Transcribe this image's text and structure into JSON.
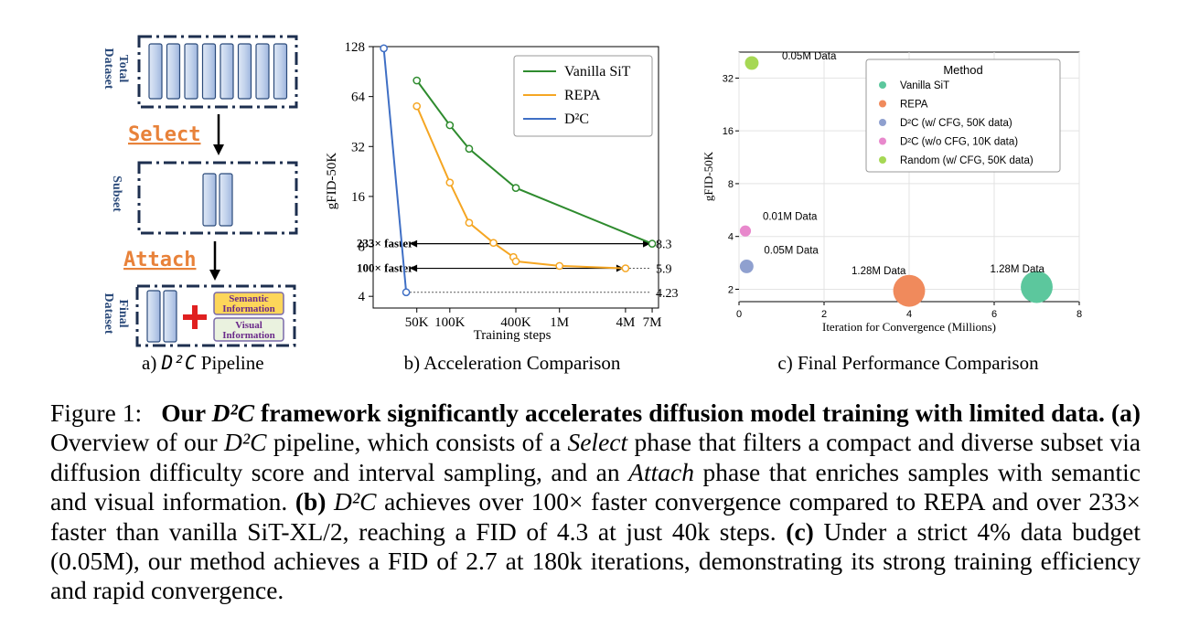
{
  "pipeline": {
    "label_total": "Total",
    "label_dataset": "Dataset",
    "label_subset": "Subset",
    "label_final": "Final",
    "select": "Select",
    "attach": "Attach",
    "semantic_1": "Semantic",
    "semantic_2": "Information",
    "visual_1": "Visual",
    "visual_2": "Information",
    "caption_prefix": "a) ",
    "caption_math": "D²C",
    "caption_suffix": " Pipeline"
  },
  "panel_b": {
    "caption": "b) Acceleration Comparison"
  },
  "panel_c": {
    "caption": "c) Final Performance Comparison"
  },
  "colors": {
    "vanilla_b": "#2e8b2e",
    "repa_b": "#f5a623",
    "d2c_b": "#3f6fc5",
    "vanilla_c": "#5cc79d",
    "repa_c": "#f08a5c",
    "d2c_cfg_c": "#8fa0cf",
    "d2c_nocfg_c": "#e888cc",
    "random_c": "#a6d854",
    "dataset_bar": "#b8cbe8",
    "frame": "#1d2f4f",
    "select_text": "#e8823a"
  },
  "chart_data": [
    {
      "type": "line",
      "title": "",
      "xlabel": "Training steps",
      "ylabel": "gFID-50K",
      "x_scale": "log",
      "y_scale": "log",
      "xlim": [
        20000,
        8000000
      ],
      "ylim": [
        3.4,
        128
      ],
      "x_ticks": [
        {
          "value": 50000,
          "label": "50K"
        },
        {
          "value": 100000,
          "label": "100K"
        },
        {
          "value": 400000,
          "label": "400K"
        },
        {
          "value": 1000000,
          "label": "1M"
        },
        {
          "value": 4000000,
          "label": "4M"
        },
        {
          "value": 7000000,
          "label": "7M"
        }
      ],
      "y_ticks": [
        4,
        8,
        16,
        32,
        64,
        128
      ],
      "legend_position": "top-right",
      "series": [
        {
          "name": "Vanilla SiT",
          "color": "#2e8b2e",
          "x": [
            50000,
            100000,
            150000,
            400000,
            7000000
          ],
          "y": [
            80,
            43,
            31,
            18,
            8.3
          ]
        },
        {
          "name": "REPA",
          "color": "#f5a623",
          "x": [
            50000,
            100000,
            150000,
            250000,
            380000,
            400000,
            1000000,
            4000000
          ],
          "y": [
            56,
            19.4,
            11.1,
            8.4,
            6.9,
            6.5,
            6.1,
            5.9
          ]
        },
        {
          "name": "D²C",
          "color": "#3f6fc5",
          "x": [
            25000,
            40000
          ],
          "y": [
            125,
            4.23
          ]
        }
      ],
      "annotations": [
        {
          "text": "233× faster",
          "y": 8.3
        },
        {
          "text": "100× faster",
          "y": 5.9
        },
        {
          "text": "8.3",
          "y": 8.3
        },
        {
          "text": "5.9",
          "y": 5.9
        },
        {
          "text": "4.23",
          "y": 4.23
        }
      ]
    },
    {
      "type": "scatter",
      "title": "",
      "xlabel": "Iteration for Convergence (Millions)",
      "ylabel": "gFID-50K",
      "y_scale": "log",
      "xlim": [
        0,
        8
      ],
      "ylim": [
        1.7,
        45
      ],
      "x_ticks": [
        0,
        2,
        4,
        6,
        8
      ],
      "y_ticks": [
        2,
        4,
        8,
        16,
        32
      ],
      "grid": true,
      "legend_title": "Method",
      "legend_position": "top-right",
      "series": [
        {
          "name": "Vanilla SiT",
          "color": "#5cc79d",
          "x": 7.0,
          "y": 2.06,
          "label": "1.28M Data",
          "size": 1.28
        },
        {
          "name": "REPA",
          "color": "#f08a5c",
          "x": 4.0,
          "y": 1.96,
          "label": "1.28M Data",
          "size": 1.28
        },
        {
          "name": "D²C (w/ CFG, 50K data)",
          "color": "#8fa0cf",
          "x": 0.18,
          "y": 2.7,
          "label": "0.05M Data",
          "size": 0.05
        },
        {
          "name": "D²C (w/o CFG, 10K data)",
          "color": "#e888cc",
          "x": 0.15,
          "y": 4.3,
          "label": "0.01M Data",
          "size": 0.01
        },
        {
          "name": "Random (w/ CFG, 50K data)",
          "color": "#a6d854",
          "x": 0.3,
          "y": 39,
          "label": "0.05M Data",
          "size": 0.05
        }
      ]
    }
  ],
  "caption": {
    "figure_label": "Figure 1:",
    "bold_1": "Our",
    "bold_math": "D²C",
    "bold_2": "framework significantly accelerates diffusion model training with limited data.",
    "a_label": "(a)",
    "a_text_1": "Overview of our",
    "a_math": "D²C",
    "a_text_2": "pipeline, which consists of a",
    "a_select": "Select",
    "a_text_3": "phase that filters a compact and diverse subset via diffusion difficulty score and interval sampling, and an",
    "a_attach": "Attach",
    "a_text_4": "phase that enriches samples with semantic and visual information.",
    "b_label": "(b)",
    "b_math": "D²C",
    "b_text": "achieves over 100× faster convergence compared to REPA and over 233× faster than vanilla SiT-XL/2, reaching a FID of 4.3 at just 40k steps.",
    "c_label": "(c)",
    "c_text": "Under a strict 4% data budget (0.05M), our method achieves a FID of 2.7 at 180k iterations, demonstrating its strong training efficiency and rapid convergence."
  }
}
